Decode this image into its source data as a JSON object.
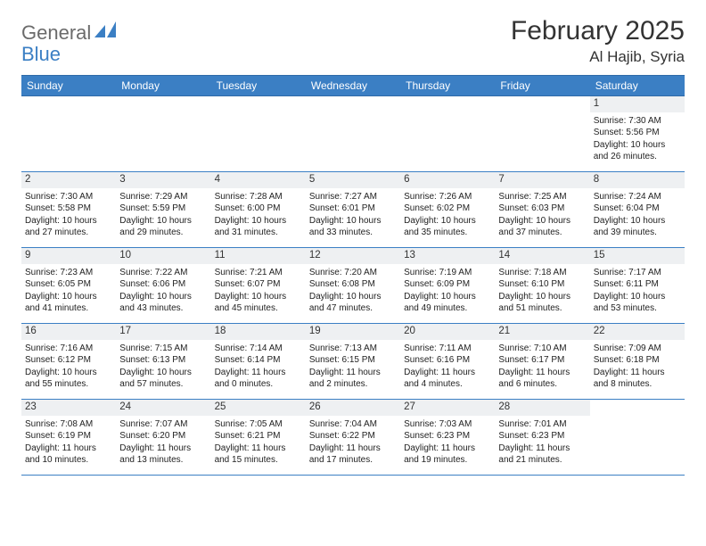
{
  "logo": {
    "text1": "General",
    "text2": "Blue"
  },
  "title": "February 2025",
  "location": "Al Hajib, Syria",
  "colors": {
    "header_bg": "#3b7fc4",
    "header_text": "#ffffff",
    "row_border": "#3b7fc4",
    "num_bg": "#eef0f2",
    "page_bg": "#ffffff",
    "text": "#222222"
  },
  "day_names": [
    "Sunday",
    "Monday",
    "Tuesday",
    "Wednesday",
    "Thursday",
    "Friday",
    "Saturday"
  ],
  "weeks": [
    [
      {
        "n": "",
        "empty": true
      },
      {
        "n": "",
        "empty": true
      },
      {
        "n": "",
        "empty": true
      },
      {
        "n": "",
        "empty": true
      },
      {
        "n": "",
        "empty": true
      },
      {
        "n": "",
        "empty": true
      },
      {
        "n": "1",
        "sr": "Sunrise: 7:30 AM",
        "ss": "Sunset: 5:56 PM",
        "dl1": "Daylight: 10 hours",
        "dl2": "and 26 minutes."
      }
    ],
    [
      {
        "n": "2",
        "sr": "Sunrise: 7:30 AM",
        "ss": "Sunset: 5:58 PM",
        "dl1": "Daylight: 10 hours",
        "dl2": "and 27 minutes."
      },
      {
        "n": "3",
        "sr": "Sunrise: 7:29 AM",
        "ss": "Sunset: 5:59 PM",
        "dl1": "Daylight: 10 hours",
        "dl2": "and 29 minutes."
      },
      {
        "n": "4",
        "sr": "Sunrise: 7:28 AM",
        "ss": "Sunset: 6:00 PM",
        "dl1": "Daylight: 10 hours",
        "dl2": "and 31 minutes."
      },
      {
        "n": "5",
        "sr": "Sunrise: 7:27 AM",
        "ss": "Sunset: 6:01 PM",
        "dl1": "Daylight: 10 hours",
        "dl2": "and 33 minutes."
      },
      {
        "n": "6",
        "sr": "Sunrise: 7:26 AM",
        "ss": "Sunset: 6:02 PM",
        "dl1": "Daylight: 10 hours",
        "dl2": "and 35 minutes."
      },
      {
        "n": "7",
        "sr": "Sunrise: 7:25 AM",
        "ss": "Sunset: 6:03 PM",
        "dl1": "Daylight: 10 hours",
        "dl2": "and 37 minutes."
      },
      {
        "n": "8",
        "sr": "Sunrise: 7:24 AM",
        "ss": "Sunset: 6:04 PM",
        "dl1": "Daylight: 10 hours",
        "dl2": "and 39 minutes."
      }
    ],
    [
      {
        "n": "9",
        "sr": "Sunrise: 7:23 AM",
        "ss": "Sunset: 6:05 PM",
        "dl1": "Daylight: 10 hours",
        "dl2": "and 41 minutes."
      },
      {
        "n": "10",
        "sr": "Sunrise: 7:22 AM",
        "ss": "Sunset: 6:06 PM",
        "dl1": "Daylight: 10 hours",
        "dl2": "and 43 minutes."
      },
      {
        "n": "11",
        "sr": "Sunrise: 7:21 AM",
        "ss": "Sunset: 6:07 PM",
        "dl1": "Daylight: 10 hours",
        "dl2": "and 45 minutes."
      },
      {
        "n": "12",
        "sr": "Sunrise: 7:20 AM",
        "ss": "Sunset: 6:08 PM",
        "dl1": "Daylight: 10 hours",
        "dl2": "and 47 minutes."
      },
      {
        "n": "13",
        "sr": "Sunrise: 7:19 AM",
        "ss": "Sunset: 6:09 PM",
        "dl1": "Daylight: 10 hours",
        "dl2": "and 49 minutes."
      },
      {
        "n": "14",
        "sr": "Sunrise: 7:18 AM",
        "ss": "Sunset: 6:10 PM",
        "dl1": "Daylight: 10 hours",
        "dl2": "and 51 minutes."
      },
      {
        "n": "15",
        "sr": "Sunrise: 7:17 AM",
        "ss": "Sunset: 6:11 PM",
        "dl1": "Daylight: 10 hours",
        "dl2": "and 53 minutes."
      }
    ],
    [
      {
        "n": "16",
        "sr": "Sunrise: 7:16 AM",
        "ss": "Sunset: 6:12 PM",
        "dl1": "Daylight: 10 hours",
        "dl2": "and 55 minutes."
      },
      {
        "n": "17",
        "sr": "Sunrise: 7:15 AM",
        "ss": "Sunset: 6:13 PM",
        "dl1": "Daylight: 10 hours",
        "dl2": "and 57 minutes."
      },
      {
        "n": "18",
        "sr": "Sunrise: 7:14 AM",
        "ss": "Sunset: 6:14 PM",
        "dl1": "Daylight: 11 hours",
        "dl2": "and 0 minutes."
      },
      {
        "n": "19",
        "sr": "Sunrise: 7:13 AM",
        "ss": "Sunset: 6:15 PM",
        "dl1": "Daylight: 11 hours",
        "dl2": "and 2 minutes."
      },
      {
        "n": "20",
        "sr": "Sunrise: 7:11 AM",
        "ss": "Sunset: 6:16 PM",
        "dl1": "Daylight: 11 hours",
        "dl2": "and 4 minutes."
      },
      {
        "n": "21",
        "sr": "Sunrise: 7:10 AM",
        "ss": "Sunset: 6:17 PM",
        "dl1": "Daylight: 11 hours",
        "dl2": "and 6 minutes."
      },
      {
        "n": "22",
        "sr": "Sunrise: 7:09 AM",
        "ss": "Sunset: 6:18 PM",
        "dl1": "Daylight: 11 hours",
        "dl2": "and 8 minutes."
      }
    ],
    [
      {
        "n": "23",
        "sr": "Sunrise: 7:08 AM",
        "ss": "Sunset: 6:19 PM",
        "dl1": "Daylight: 11 hours",
        "dl2": "and 10 minutes."
      },
      {
        "n": "24",
        "sr": "Sunrise: 7:07 AM",
        "ss": "Sunset: 6:20 PM",
        "dl1": "Daylight: 11 hours",
        "dl2": "and 13 minutes."
      },
      {
        "n": "25",
        "sr": "Sunrise: 7:05 AM",
        "ss": "Sunset: 6:21 PM",
        "dl1": "Daylight: 11 hours",
        "dl2": "and 15 minutes."
      },
      {
        "n": "26",
        "sr": "Sunrise: 7:04 AM",
        "ss": "Sunset: 6:22 PM",
        "dl1": "Daylight: 11 hours",
        "dl2": "and 17 minutes."
      },
      {
        "n": "27",
        "sr": "Sunrise: 7:03 AM",
        "ss": "Sunset: 6:23 PM",
        "dl1": "Daylight: 11 hours",
        "dl2": "and 19 minutes."
      },
      {
        "n": "28",
        "sr": "Sunrise: 7:01 AM",
        "ss": "Sunset: 6:23 PM",
        "dl1": "Daylight: 11 hours",
        "dl2": "and 21 minutes."
      },
      {
        "n": "",
        "empty": true
      }
    ]
  ]
}
